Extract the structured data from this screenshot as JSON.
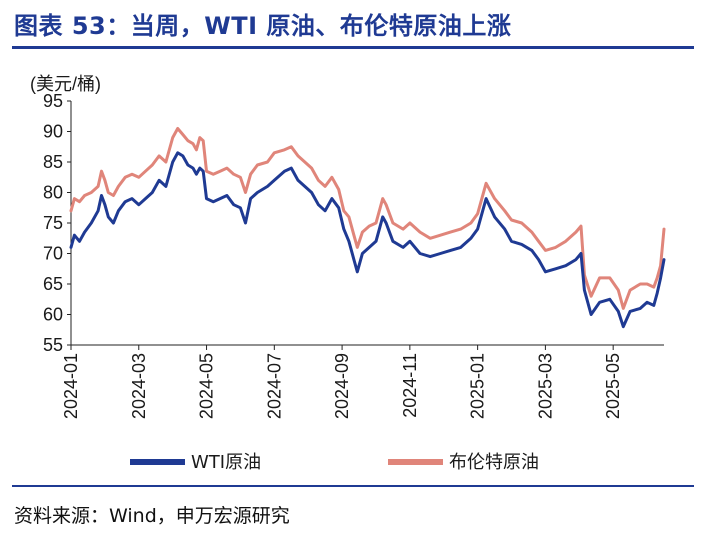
{
  "header": {
    "title": "图表 53：当周，WTI 原油、布伦特原油上涨"
  },
  "footer": {
    "source": "资料来源：Wind，申万宏源研究"
  },
  "chart_data": {
    "type": "line",
    "title": "图表 53：当周，WTI 原油、布伦特原油上涨",
    "ylabel": "(美元/桶)",
    "xlabel": "",
    "ylim": [
      55,
      95
    ],
    "yticks": [
      55,
      60,
      65,
      70,
      75,
      80,
      85,
      90,
      95
    ],
    "xlim": [
      0,
      17.5
    ],
    "xticks": [
      {
        "label": "2024-01",
        "x": 0
      },
      {
        "label": "2024-03",
        "x": 2
      },
      {
        "label": "2024-05",
        "x": 4
      },
      {
        "label": "2024-07",
        "x": 6
      },
      {
        "label": "2024-09",
        "x": 8
      },
      {
        "label": "2024-11",
        "x": 10
      },
      {
        "label": "2025-01",
        "x": 12
      },
      {
        "label": "2025-03",
        "x": 14
      },
      {
        "label": "2025-05",
        "x": 16
      }
    ],
    "legend_position": "bottom",
    "series": [
      {
        "name": "WTI原油",
        "color": "#1F3A93",
        "points": [
          [
            0.0,
            71
          ],
          [
            0.1,
            73
          ],
          [
            0.25,
            72
          ],
          [
            0.4,
            73.5
          ],
          [
            0.6,
            75
          ],
          [
            0.8,
            77
          ],
          [
            0.9,
            79.5
          ],
          [
            1.0,
            78
          ],
          [
            1.1,
            76
          ],
          [
            1.25,
            75
          ],
          [
            1.4,
            77
          ],
          [
            1.6,
            78.5
          ],
          [
            1.8,
            79
          ],
          [
            2.0,
            78
          ],
          [
            2.2,
            79
          ],
          [
            2.4,
            80
          ],
          [
            2.6,
            82
          ],
          [
            2.8,
            81
          ],
          [
            3.0,
            85
          ],
          [
            3.15,
            86.5
          ],
          [
            3.3,
            86
          ],
          [
            3.45,
            84.5
          ],
          [
            3.6,
            84
          ],
          [
            3.7,
            83
          ],
          [
            3.8,
            84
          ],
          [
            3.9,
            83.5
          ],
          [
            4.0,
            79
          ],
          [
            4.2,
            78.5
          ],
          [
            4.4,
            79
          ],
          [
            4.6,
            79.5
          ],
          [
            4.8,
            78
          ],
          [
            5.0,
            77.5
          ],
          [
            5.15,
            75
          ],
          [
            5.3,
            79
          ],
          [
            5.5,
            80
          ],
          [
            5.8,
            81
          ],
          [
            6.0,
            82
          ],
          [
            6.3,
            83.5
          ],
          [
            6.5,
            84
          ],
          [
            6.7,
            82
          ],
          [
            6.9,
            81
          ],
          [
            7.1,
            80
          ],
          [
            7.3,
            78
          ],
          [
            7.5,
            77
          ],
          [
            7.7,
            79
          ],
          [
            7.9,
            77.5
          ],
          [
            8.05,
            74
          ],
          [
            8.2,
            72
          ],
          [
            8.35,
            69
          ],
          [
            8.45,
            67
          ],
          [
            8.6,
            70
          ],
          [
            8.8,
            71
          ],
          [
            9.0,
            72
          ],
          [
            9.2,
            76
          ],
          [
            9.3,
            75
          ],
          [
            9.5,
            72
          ],
          [
            9.8,
            71
          ],
          [
            10.0,
            72
          ],
          [
            10.3,
            70
          ],
          [
            10.6,
            69.5
          ],
          [
            10.9,
            70
          ],
          [
            11.2,
            70.5
          ],
          [
            11.5,
            71
          ],
          [
            11.8,
            72.5
          ],
          [
            12.0,
            74
          ],
          [
            12.25,
            79
          ],
          [
            12.5,
            76
          ],
          [
            12.8,
            74
          ],
          [
            13.0,
            72
          ],
          [
            13.3,
            71.5
          ],
          [
            13.6,
            70.5
          ],
          [
            13.8,
            69
          ],
          [
            14.0,
            67
          ],
          [
            14.3,
            67.5
          ],
          [
            14.6,
            68
          ],
          [
            14.9,
            69
          ],
          [
            15.05,
            70
          ],
          [
            15.15,
            64
          ],
          [
            15.35,
            60
          ],
          [
            15.6,
            62
          ],
          [
            15.9,
            62.5
          ],
          [
            16.15,
            60.5
          ],
          [
            16.3,
            58
          ],
          [
            16.5,
            60.5
          ],
          [
            16.8,
            61
          ],
          [
            17.0,
            62
          ],
          [
            17.2,
            61.5
          ],
          [
            17.3,
            63.5
          ],
          [
            17.4,
            66
          ],
          [
            17.5,
            69
          ]
        ]
      },
      {
        "name": "布伦特原油",
        "color": "#E0857A",
        "points": [
          [
            0.0,
            77
          ],
          [
            0.1,
            79
          ],
          [
            0.25,
            78.5
          ],
          [
            0.4,
            79.5
          ],
          [
            0.6,
            80
          ],
          [
            0.8,
            81
          ],
          [
            0.9,
            83.5
          ],
          [
            1.0,
            82
          ],
          [
            1.1,
            80
          ],
          [
            1.25,
            79.5
          ],
          [
            1.4,
            81
          ],
          [
            1.6,
            82.5
          ],
          [
            1.8,
            83
          ],
          [
            2.0,
            82.5
          ],
          [
            2.2,
            83.5
          ],
          [
            2.4,
            84.5
          ],
          [
            2.6,
            86
          ],
          [
            2.8,
            85
          ],
          [
            3.0,
            89
          ],
          [
            3.15,
            90.5
          ],
          [
            3.3,
            89.5
          ],
          [
            3.45,
            88.5
          ],
          [
            3.6,
            88
          ],
          [
            3.7,
            87
          ],
          [
            3.8,
            89
          ],
          [
            3.9,
            88.5
          ],
          [
            4.0,
            83.5
          ],
          [
            4.2,
            83
          ],
          [
            4.4,
            83.5
          ],
          [
            4.6,
            84
          ],
          [
            4.8,
            83
          ],
          [
            5.0,
            82.5
          ],
          [
            5.15,
            80
          ],
          [
            5.3,
            83
          ],
          [
            5.5,
            84.5
          ],
          [
            5.8,
            85
          ],
          [
            6.0,
            86.5
          ],
          [
            6.3,
            87
          ],
          [
            6.5,
            87.5
          ],
          [
            6.7,
            86
          ],
          [
            6.9,
            85
          ],
          [
            7.1,
            84
          ],
          [
            7.3,
            82
          ],
          [
            7.5,
            81
          ],
          [
            7.7,
            82.5
          ],
          [
            7.9,
            80.5
          ],
          [
            8.05,
            77
          ],
          [
            8.2,
            76
          ],
          [
            8.35,
            73
          ],
          [
            8.45,
            71
          ],
          [
            8.6,
            73.5
          ],
          [
            8.8,
            74.5
          ],
          [
            9.0,
            75
          ],
          [
            9.2,
            79
          ],
          [
            9.3,
            78
          ],
          [
            9.5,
            75
          ],
          [
            9.8,
            74
          ],
          [
            10.0,
            75
          ],
          [
            10.3,
            73.5
          ],
          [
            10.6,
            72.5
          ],
          [
            10.9,
            73
          ],
          [
            11.2,
            73.5
          ],
          [
            11.5,
            74
          ],
          [
            11.8,
            75
          ],
          [
            12.0,
            76.5
          ],
          [
            12.25,
            81.5
          ],
          [
            12.5,
            79
          ],
          [
            12.8,
            77
          ],
          [
            13.0,
            75.5
          ],
          [
            13.3,
            75
          ],
          [
            13.6,
            73.5
          ],
          [
            13.8,
            72
          ],
          [
            14.0,
            70.5
          ],
          [
            14.3,
            71
          ],
          [
            14.6,
            72
          ],
          [
            14.9,
            73.5
          ],
          [
            15.05,
            74.5
          ],
          [
            15.15,
            66.5
          ],
          [
            15.35,
            63
          ],
          [
            15.6,
            66
          ],
          [
            15.9,
            66
          ],
          [
            16.15,
            64
          ],
          [
            16.3,
            61
          ],
          [
            16.5,
            64
          ],
          [
            16.8,
            65
          ],
          [
            17.0,
            65
          ],
          [
            17.2,
            64.5
          ],
          [
            17.3,
            66
          ],
          [
            17.4,
            68
          ],
          [
            17.5,
            74
          ]
        ]
      }
    ]
  }
}
